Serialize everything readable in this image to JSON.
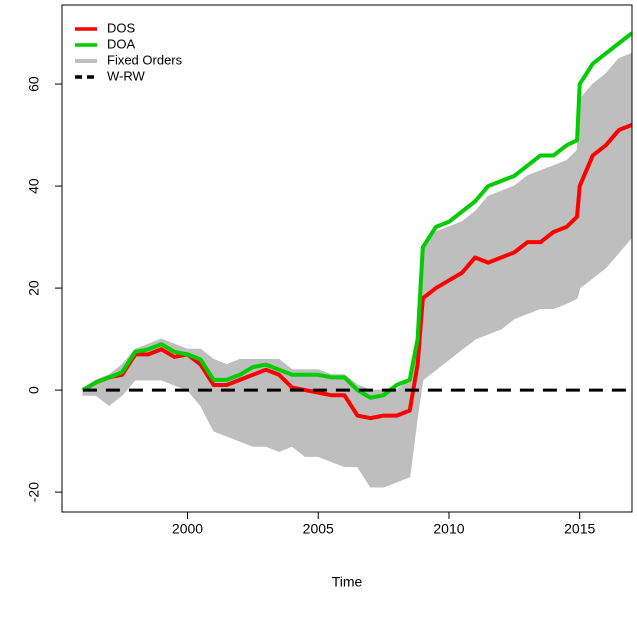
{
  "chart_data": {
    "type": "line",
    "x_label": "Time",
    "xlim": [
      1995.2,
      2017
    ],
    "xticks": [
      2000,
      2005,
      2010,
      2015
    ],
    "ylim": [
      -23.9,
      75.5
    ],
    "yticks": [
      -20,
      0,
      20,
      40,
      60
    ],
    "legend": "topleft",
    "x": [
      1996,
      1996.5,
      1997,
      1997.5,
      1998,
      1998.5,
      1999,
      1999.5,
      2000,
      2000.5,
      2001,
      2001.5,
      2002,
      2002.5,
      2003,
      2003.5,
      2004,
      2004.5,
      2005,
      2005.5,
      2006,
      2006.5,
      2007,
      2007.5,
      2008,
      2008.5,
      2008.8,
      2009,
      2009.5,
      2010,
      2010.5,
      2011,
      2011.5,
      2012,
      2012.5,
      2013,
      2013.5,
      2014,
      2014.5,
      2014.9,
      2015,
      2015.5,
      2016,
      2016.5,
      2017
    ],
    "series": [
      {
        "name": "DOS",
        "color": "#ff0000",
        "style": "solid",
        "values": [
          0,
          1.5,
          2.5,
          3,
          7,
          7,
          8,
          6.5,
          7,
          5,
          1,
          1,
          2,
          3,
          4,
          3,
          0.5,
          0,
          -0.5,
          -1,
          -1,
          -5,
          -5.5,
          -5,
          -5,
          -4,
          5,
          18,
          20,
          21.5,
          23,
          26,
          25,
          26,
          27,
          29,
          29,
          31,
          32,
          34,
          40,
          46,
          48,
          51,
          52
        ]
      },
      {
        "name": "DOA",
        "color": "#00cd00",
        "style": "solid",
        "values": [
          0,
          1.5,
          2.5,
          3.5,
          7.5,
          8,
          9,
          7.5,
          7,
          6,
          2,
          2,
          3,
          4.5,
          5,
          4,
          3,
          3,
          3,
          2.5,
          2.5,
          0,
          -1.5,
          -1,
          1,
          2,
          10,
          28,
          32,
          33,
          35,
          37,
          40,
          41,
          42,
          44,
          46,
          46,
          48,
          49,
          60,
          64,
          66,
          68,
          70
        ]
      },
      {
        "name": "Fixed Orders",
        "color": "#bebebe",
        "style": "band",
        "values": [
          0,
          2,
          3,
          5,
          8,
          9,
          10,
          9,
          8,
          8,
          6,
          5,
          6,
          6,
          6,
          6,
          4,
          4,
          4,
          3,
          3,
          1,
          0,
          0,
          0,
          2,
          10,
          28,
          31,
          32,
          33,
          35,
          38,
          39,
          40,
          42,
          43,
          44,
          45,
          47,
          57,
          60,
          62,
          65,
          66
        ],
        "lower": [
          -1,
          -1,
          -3,
          -1,
          2,
          2,
          2,
          1,
          0,
          -3,
          -8,
          -9,
          -10,
          -11,
          -11,
          -12,
          -11,
          -13,
          -13,
          -14,
          -15,
          -15,
          -19,
          -19,
          -18,
          -17,
          -5,
          2,
          4,
          6,
          8,
          10,
          11,
          12,
          14,
          15,
          16,
          16,
          17,
          18,
          20,
          22,
          24,
          27,
          30
        ]
      },
      {
        "name": "W-RW",
        "color": "#000000",
        "style": "dashed",
        "values": [
          0,
          0,
          0,
          0,
          0,
          0,
          0,
          0,
          0,
          0,
          0,
          0,
          0,
          0,
          0,
          0,
          0,
          0,
          0,
          0,
          0,
          0,
          0,
          0,
          0,
          0,
          0,
          0,
          0,
          0,
          0,
          0,
          0,
          0,
          0,
          0,
          0,
          0,
          0,
          0,
          0,
          0,
          0,
          0,
          0
        ]
      }
    ]
  }
}
